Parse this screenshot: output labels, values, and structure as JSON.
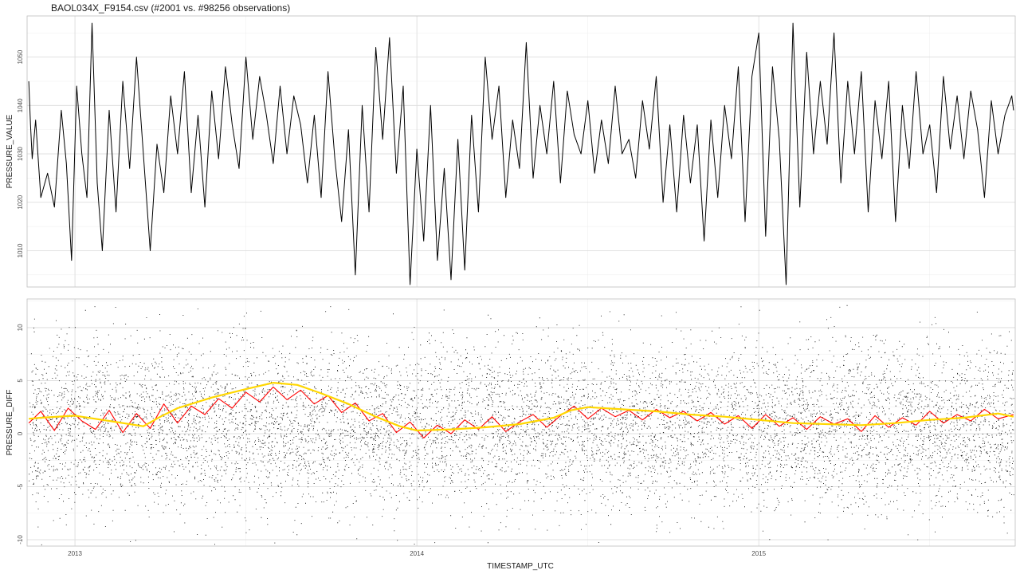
{
  "title": "BAOL034X_F9154.csv (#2001 vs. #98256 observations)",
  "x_axis_label": "TIMESTAMP_UTC",
  "chart_data": [
    {
      "type": "line",
      "ylabel": "PRESSURE_VALUE",
      "xlim": [
        2012.86,
        2015.75
      ],
      "ylim": [
        1002.5,
        1058.5
      ],
      "xticks": [
        2013,
        2014,
        2015
      ],
      "xtick_labels": [
        "2013",
        "2014",
        "2015"
      ],
      "yticks": [
        1010,
        1020,
        1030,
        1040,
        1050
      ],
      "ytick_labels": [
        "1010",
        "1020",
        "1030",
        "1040",
        "1050"
      ],
      "grid": true,
      "series": [
        {
          "color": "#000000",
          "x": [
            2012.865,
            2012.87,
            2012.875,
            2012.885,
            2012.9,
            2012.92,
            2012.94,
            2012.96,
            2012.975,
            2012.99,
            2013.005,
            2013.02,
            2013.035,
            2013.05,
            2013.065,
            2013.08,
            2013.1,
            2013.12,
            2013.14,
            2013.16,
            2013.18,
            2013.2,
            2013.22,
            2013.24,
            2013.26,
            2013.28,
            2013.3,
            2013.32,
            2013.34,
            2013.36,
            2013.38,
            2013.4,
            2013.42,
            2013.44,
            2013.46,
            2013.48,
            2013.5,
            2013.52,
            2013.54,
            2013.56,
            2013.58,
            2013.6,
            2013.62,
            2013.64,
            2013.66,
            2013.68,
            2013.7,
            2013.72,
            2013.74,
            2013.76,
            2013.78,
            2013.8,
            2013.82,
            2013.84,
            2013.86,
            2013.88,
            2013.9,
            2013.92,
            2013.94,
            2013.96,
            2013.98,
            2014.0,
            2014.02,
            2014.04,
            2014.06,
            2014.08,
            2014.1,
            2014.12,
            2014.14,
            2014.16,
            2014.18,
            2014.2,
            2014.22,
            2014.24,
            2014.26,
            2014.28,
            2014.3,
            2014.32,
            2014.34,
            2014.36,
            2014.38,
            2014.4,
            2014.42,
            2014.44,
            2014.46,
            2014.48,
            2014.5,
            2014.52,
            2014.54,
            2014.56,
            2014.58,
            2014.6,
            2014.62,
            2014.64,
            2014.66,
            2014.68,
            2014.7,
            2014.72,
            2014.74,
            2014.76,
            2014.78,
            2014.8,
            2014.82,
            2014.84,
            2014.86,
            2014.88,
            2014.9,
            2014.92,
            2014.94,
            2014.96,
            2014.98,
            2015.0,
            2015.02,
            2015.04,
            2015.06,
            2015.08,
            2015.1,
            2015.12,
            2015.14,
            2015.16,
            2015.18,
            2015.2,
            2015.22,
            2015.24,
            2015.26,
            2015.28,
            2015.3,
            2015.32,
            2015.34,
            2015.36,
            2015.38,
            2015.4,
            2015.42,
            2015.44,
            2015.46,
            2015.48,
            2015.5,
            2015.52,
            2015.54,
            2015.56,
            2015.58,
            2015.6,
            2015.62,
            2015.64,
            2015.66,
            2015.68,
            2015.7,
            2015.72,
            2015.74,
            2015.745
          ],
          "y": [
            1045,
            1036,
            1029,
            1037,
            1021,
            1026,
            1019,
            1039,
            1028,
            1008,
            1044,
            1030,
            1021,
            1057,
            1024,
            1010,
            1039,
            1018,
            1045,
            1027,
            1050,
            1030,
            1010,
            1032,
            1022,
            1042,
            1030,
            1047,
            1022,
            1038,
            1019,
            1043,
            1029,
            1048,
            1036,
            1027,
            1050,
            1033,
            1046,
            1038,
            1028,
            1044,
            1030,
            1042,
            1036,
            1024,
            1038,
            1021,
            1047,
            1029,
            1016,
            1035,
            1005,
            1040,
            1018,
            1052,
            1033,
            1054,
            1026,
            1044,
            1003,
            1031,
            1012,
            1040,
            1008,
            1027,
            1004,
            1033,
            1006,
            1038,
            1018,
            1050,
            1033,
            1044,
            1021,
            1037,
            1027,
            1053,
            1025,
            1040,
            1030,
            1045,
            1024,
            1043,
            1034,
            1030,
            1041,
            1026,
            1037,
            1028,
            1044,
            1030,
            1033,
            1025,
            1041,
            1031,
            1046,
            1020,
            1036,
            1018,
            1038,
            1024,
            1036,
            1012,
            1037,
            1021,
            1040,
            1029,
            1048,
            1016,
            1046,
            1055,
            1013,
            1048,
            1033,
            1003,
            1057,
            1019,
            1051,
            1030,
            1045,
            1032,
            1055,
            1024,
            1045,
            1030,
            1047,
            1018,
            1041,
            1029,
            1045,
            1016,
            1040,
            1027,
            1047,
            1030,
            1036,
            1022,
            1046,
            1031,
            1042,
            1029,
            1043,
            1035,
            1021,
            1041,
            1030,
            1038,
            1042,
            1039
          ]
        }
      ]
    },
    {
      "type": "scatter",
      "ylabel": "PRESSURE_DIFF",
      "xlim": [
        2012.86,
        2015.75
      ],
      "ylim": [
        -10.6,
        12.7
      ],
      "xticks": [
        2013,
        2014,
        2015
      ],
      "xtick_labels": [
        "2013",
        "2014",
        "2015"
      ],
      "yticks": [
        -10,
        -5,
        0,
        5,
        10
      ],
      "ytick_labels": [
        "-10",
        "-5",
        "0",
        "5",
        "10"
      ],
      "grid": true,
      "series": [
        {
          "kind": "points",
          "color": "#000000",
          "x_range": [
            2012.865,
            2015.745
          ],
          "y_range": [
            -10.5,
            12.5
          ],
          "count": 98256
        },
        {
          "kind": "line",
          "color": "#ff0000",
          "x": [
            2012.865,
            2012.9,
            2012.94,
            2012.98,
            2013.02,
            2013.06,
            2013.1,
            2013.14,
            2013.18,
            2013.22,
            2013.26,
            2013.3,
            2013.34,
            2013.38,
            2013.42,
            2013.46,
            2013.5,
            2013.54,
            2013.58,
            2013.62,
            2013.66,
            2013.7,
            2013.74,
            2013.78,
            2013.82,
            2013.86,
            2013.9,
            2013.94,
            2013.98,
            2014.02,
            2014.06,
            2014.1,
            2014.14,
            2014.18,
            2014.22,
            2014.26,
            2014.3,
            2014.34,
            2014.38,
            2014.42,
            2014.46,
            2014.5,
            2014.54,
            2014.58,
            2014.62,
            2014.66,
            2014.7,
            2014.74,
            2014.78,
            2014.82,
            2014.86,
            2014.9,
            2014.94,
            2014.98,
            2015.02,
            2015.06,
            2015.1,
            2015.14,
            2015.18,
            2015.22,
            2015.26,
            2015.3,
            2015.34,
            2015.38,
            2015.42,
            2015.46,
            2015.5,
            2015.54,
            2015.58,
            2015.62,
            2015.66,
            2015.7,
            2015.745
          ],
          "y": [
            1.0,
            2.1,
            0.3,
            2.4,
            1.2,
            0.4,
            2.2,
            0.1,
            1.9,
            0.5,
            2.8,
            1.0,
            2.6,
            1.8,
            3.3,
            2.4,
            3.9,
            3.0,
            4.4,
            3.2,
            4.1,
            2.8,
            3.6,
            2.0,
            2.9,
            1.2,
            1.9,
            0.1,
            1.1,
            -0.4,
            0.8,
            0.0,
            1.3,
            0.4,
            1.6,
            0.2,
            1.1,
            1.8,
            0.6,
            1.7,
            2.6,
            1.4,
            2.4,
            1.6,
            2.2,
            1.3,
            2.3,
            1.5,
            2.1,
            1.2,
            2.0,
            0.9,
            1.7,
            0.5,
            1.8,
            0.7,
            1.5,
            0.4,
            1.6,
            0.9,
            1.4,
            0.2,
            1.7,
            0.6,
            1.5,
            0.8,
            2.1,
            1.0,
            1.8,
            1.2,
            2.3,
            1.4,
            1.8
          ]
        },
        {
          "kind": "smooth",
          "color": "#ffd700",
          "x": [
            2012.865,
            2012.9,
            2013.0,
            2013.1,
            2013.2,
            2013.25,
            2013.3,
            2013.4,
            2013.5,
            2013.58,
            2013.65,
            2013.72,
            2013.8,
            2013.88,
            2013.95,
            2014.0,
            2014.1,
            2014.2,
            2014.3,
            2014.4,
            2014.45,
            2014.5,
            2014.6,
            2014.7,
            2014.8,
            2014.9,
            2015.0,
            2015.1,
            2015.2,
            2015.3,
            2015.4,
            2015.5,
            2015.6,
            2015.7,
            2015.745
          ],
          "y": [
            1.4,
            1.5,
            1.7,
            1.2,
            0.7,
            1.6,
            2.4,
            3.4,
            4.2,
            4.8,
            4.6,
            3.8,
            2.8,
            1.6,
            0.7,
            0.3,
            0.4,
            0.6,
            0.9,
            1.5,
            2.2,
            2.5,
            2.3,
            2.1,
            1.8,
            1.6,
            1.3,
            1.0,
            0.9,
            0.8,
            1.0,
            1.3,
            1.5,
            1.9,
            1.6
          ]
        }
      ]
    }
  ]
}
